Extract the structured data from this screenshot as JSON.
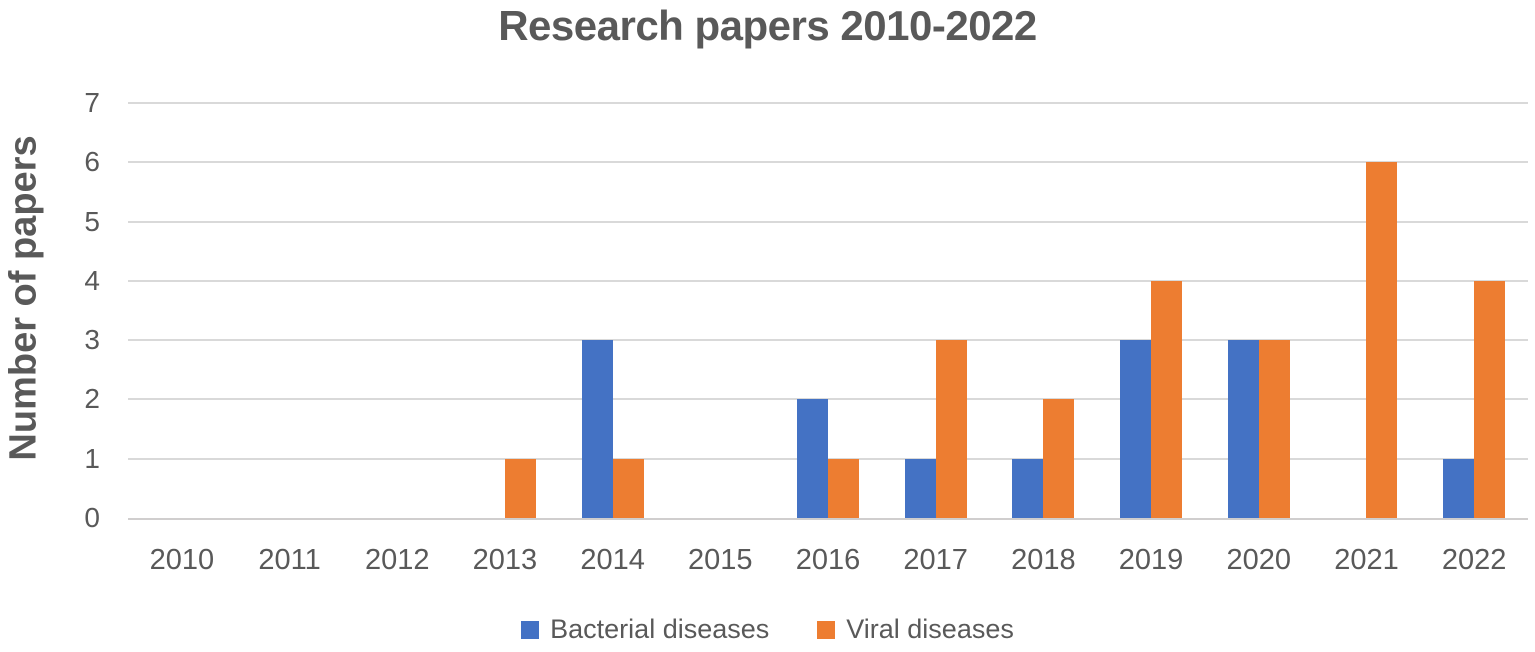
{
  "chart_data": {
    "type": "bar",
    "title": "Research papers 2010-2022",
    "ylabel": "Number of papers",
    "xlabel": "",
    "categories": [
      "2010",
      "2011",
      "2012",
      "2013",
      "2014",
      "2015",
      "2016",
      "2017",
      "2018",
      "2019",
      "2020",
      "2021",
      "2022"
    ],
    "series": [
      {
        "name": "Bacterial diseases",
        "color": "#4472C4",
        "values": [
          0,
          0,
          0,
          0,
          3,
          0,
          2,
          1,
          1,
          3,
          3,
          0,
          1
        ]
      },
      {
        "name": "Viral diseases",
        "color": "#ED7D31",
        "values": [
          0,
          0,
          0,
          1,
          1,
          0,
          1,
          3,
          2,
          4,
          3,
          6,
          4
        ]
      }
    ],
    "ylim": [
      0,
      7
    ],
    "yticks": [
      0,
      1,
      2,
      3,
      4,
      5,
      6,
      7
    ],
    "grid": "horizontal",
    "legend_position": "bottom"
  },
  "colors": {
    "text": "#595959",
    "gridline": "#D9D9D9",
    "axis_line": "#D0CECE",
    "background": "#FFFFFF"
  }
}
